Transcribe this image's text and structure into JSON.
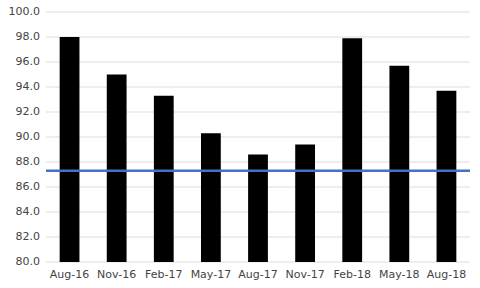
{
  "chart_data": {
    "type": "bar",
    "categories": [
      "Aug-16",
      "Nov-16",
      "Feb-17",
      "May-17",
      "Aug-17",
      "Nov-17",
      "Feb-18",
      "May-18",
      "Aug-18"
    ],
    "values": [
      98.0,
      95.0,
      93.3,
      90.3,
      88.6,
      89.4,
      97.9,
      95.7,
      93.7
    ],
    "color": "#000000",
    "historical_avg": 87.3,
    "historical_avg_color": "#4472c4",
    "ylim": [
      80.0,
      100.0
    ],
    "yticks": [
      {
        "value": 80.0,
        "label": "80.0"
      },
      {
        "value": 82.0,
        "label": "82.0"
      },
      {
        "value": 84.0,
        "label": "84.0"
      },
      {
        "value": 86.0,
        "label": "86.0"
      },
      {
        "value": 88.0,
        "label": "88.0"
      },
      {
        "value": 90.0,
        "label": "90.0"
      },
      {
        "value": 92.0,
        "label": "92.0"
      },
      {
        "value": 94.0,
        "label": "94.0"
      },
      {
        "value": 96.0,
        "label": "96.0"
      },
      {
        "value": 98.0,
        "label": "98.0"
      },
      {
        "value": 100.0,
        "label": "100.0"
      }
    ],
    "grid": true
  }
}
